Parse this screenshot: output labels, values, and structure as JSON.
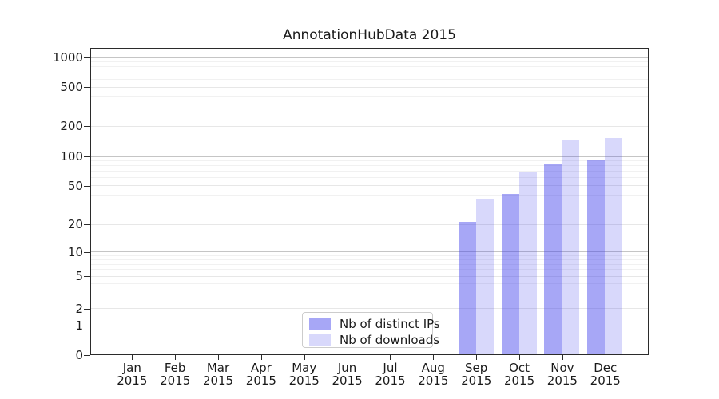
{
  "colors": {
    "distinct_ips_bar": "rgba(60,60,235,0.45)",
    "downloads_bar": "rgba(60,60,235,0.20)",
    "grid_major": "#c5c5c5",
    "grid_mid": "#e7e7e7",
    "grid_minor": "#f1f1f1",
    "axis_spine": "#2b2b2b",
    "legend_border": "#cccccc"
  },
  "legend": {
    "items": [
      {
        "label": "Nb of distinct IPs",
        "series": "distinct_ips"
      },
      {
        "label": "Nb of downloads",
        "series": "downloads"
      }
    ]
  },
  "chart_data": {
    "type": "bar",
    "title": "AnnotationHubData 2015",
    "categories": [
      "Jan 2015",
      "Feb 2015",
      "Mar 2015",
      "Apr 2015",
      "May 2015",
      "Jun 2015",
      "Jul 2015",
      "Aug 2015",
      "Sep 2015",
      "Oct 2015",
      "Nov 2015",
      "Dec 2015"
    ],
    "series": [
      {
        "name": "Nb of distinct IPs",
        "color": "rgba(60,60,235,0.45)",
        "values": [
          0,
          0,
          0,
          0,
          0,
          0,
          0,
          0,
          21,
          41,
          83,
          93
        ]
      },
      {
        "name": "Nb of downloads",
        "color": "rgba(60,60,235,0.20)",
        "values": [
          0,
          0,
          0,
          0,
          0,
          0,
          0,
          0,
          36,
          69,
          148,
          152
        ]
      }
    ],
    "xlabel": "",
    "ylabel": "",
    "yscale": "log-with-zero",
    "y_ticks": [
      0,
      1,
      2,
      5,
      10,
      20,
      50,
      100,
      200,
      500,
      1000
    ],
    "y_major_grid": [
      1,
      10,
      100,
      1000
    ],
    "y_minor_ticks": [
      3,
      4,
      6,
      7,
      8,
      9,
      30,
      40,
      60,
      70,
      80,
      90,
      300,
      400,
      600,
      700,
      800,
      900
    ],
    "ylim": [
      0,
      1250
    ],
    "grid": true,
    "legend_position": "lower center"
  }
}
